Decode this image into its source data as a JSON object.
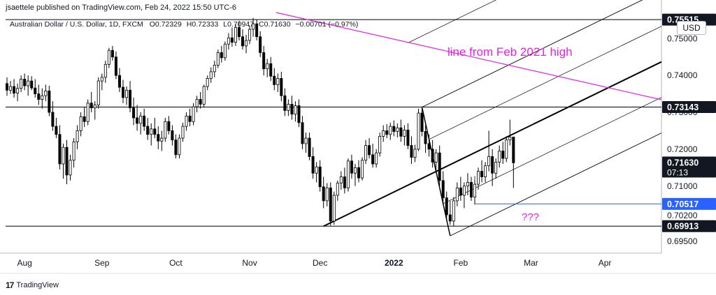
{
  "header": {
    "published": "jsaettele published on TradingView.com, Feb 24, 2022 15:50 UTC-6"
  },
  "symbol": {
    "name": "Australian Dollar / U.S. Dollar, 1D, FXCM",
    "open_label": "O",
    "open": "0.72329",
    "high_label": "H",
    "high": "0.72333",
    "low_label": "L",
    "low": "0.70947",
    "close_label": "C",
    "close": "0.71630",
    "change": "−0.00701 (−0.97%)"
  },
  "currency": "USD",
  "footer": {
    "brand": "TradingView",
    "logo": "17"
  },
  "colors": {
    "up": "#ffffff",
    "down": "#000000",
    "wick": "#000000",
    "magenta": "#e91ee9",
    "blue": "#2962ff",
    "fork": "#000000"
  },
  "chart_data": {
    "type": "candlestick",
    "title": "",
    "xlabel": "",
    "ylabel": "",
    "ylim": [
      0.6918,
      0.7563
    ],
    "x_ticks": [
      "Aug",
      "Sep",
      "Oct",
      "Nov",
      "Dec",
      "2022",
      "Feb",
      "Mar",
      "Apr"
    ],
    "y_ticks": [
      "0.75000",
      "0.74000",
      "0.73000",
      "0.72000",
      "0.71000",
      "0.70200",
      "0.69500"
    ],
    "y_tick_values": [
      0.75,
      0.74,
      0.73,
      0.72,
      0.71,
      0.702,
      0.695
    ],
    "price_labels": [
      {
        "text": "0.75515",
        "value": 0.75515,
        "style": "dark"
      },
      {
        "text": "0.73143",
        "value": 0.73143,
        "style": "dark"
      },
      {
        "text": "0.71630",
        "value": 0.7163,
        "style": "dark",
        "sub": "07:13"
      },
      {
        "text": "0.70517",
        "value": 0.70517,
        "style": "blue"
      },
      {
        "text": "0.69913",
        "value": 0.69913,
        "style": "dark"
      }
    ],
    "annotations": [
      {
        "text": "line from Feb 2021 high",
        "color": "magenta"
      },
      {
        "text": "???",
        "color": "magenta"
      }
    ],
    "horizontal_lines": [
      0.75515,
      0.73143,
      0.69913
    ],
    "candles_ohlc": [
      [
        0.7378,
        0.7395,
        0.7345,
        0.736
      ],
      [
        0.736,
        0.7385,
        0.735,
        0.737
      ],
      [
        0.737,
        0.739,
        0.734,
        0.7352
      ],
      [
        0.7352,
        0.7378,
        0.733,
        0.7365
      ],
      [
        0.7365,
        0.74,
        0.7355,
        0.739
      ],
      [
        0.739,
        0.7405,
        0.736,
        0.7372
      ],
      [
        0.7372,
        0.74,
        0.7345,
        0.7385
      ],
      [
        0.7385,
        0.7398,
        0.736,
        0.7366
      ],
      [
        0.7366,
        0.739,
        0.734,
        0.735
      ],
      [
        0.735,
        0.7375,
        0.732,
        0.7335
      ],
      [
        0.7335,
        0.7365,
        0.731,
        0.7345
      ],
      [
        0.7345,
        0.7375,
        0.733,
        0.7358
      ],
      [
        0.7358,
        0.7372,
        0.729,
        0.73
      ],
      [
        0.73,
        0.733,
        0.725,
        0.7262
      ],
      [
        0.7262,
        0.7285,
        0.723,
        0.724
      ],
      [
        0.724,
        0.7265,
        0.7145,
        0.716
      ],
      [
        0.716,
        0.7215,
        0.712,
        0.7205
      ],
      [
        0.7205,
        0.7225,
        0.7105,
        0.713
      ],
      [
        0.713,
        0.7185,
        0.7115,
        0.717
      ],
      [
        0.717,
        0.723,
        0.715,
        0.722
      ],
      [
        0.722,
        0.7265,
        0.72,
        0.725
      ],
      [
        0.725,
        0.73,
        0.7235,
        0.7288
      ],
      [
        0.7288,
        0.7315,
        0.726,
        0.7275
      ],
      [
        0.7275,
        0.7335,
        0.7265,
        0.7325
      ],
      [
        0.7325,
        0.7355,
        0.73,
        0.7312
      ],
      [
        0.7312,
        0.733,
        0.728,
        0.732
      ],
      [
        0.732,
        0.7395,
        0.731,
        0.7385
      ],
      [
        0.7385,
        0.7405,
        0.736,
        0.7395
      ],
      [
        0.7395,
        0.744,
        0.738,
        0.743
      ],
      [
        0.743,
        0.7475,
        0.742,
        0.7468
      ],
      [
        0.7468,
        0.748,
        0.744,
        0.745
      ],
      [
        0.745,
        0.7465,
        0.739,
        0.74
      ],
      [
        0.74,
        0.742,
        0.7355,
        0.7368
      ],
      [
        0.7368,
        0.7388,
        0.7325,
        0.734
      ],
      [
        0.734,
        0.737,
        0.732,
        0.736
      ],
      [
        0.736,
        0.7385,
        0.73,
        0.7312
      ],
      [
        0.7312,
        0.734,
        0.7265,
        0.7285
      ],
      [
        0.7285,
        0.732,
        0.725,
        0.727
      ],
      [
        0.727,
        0.73,
        0.724,
        0.729
      ],
      [
        0.729,
        0.731,
        0.725,
        0.7262
      ],
      [
        0.7262,
        0.7285,
        0.7225,
        0.724
      ],
      [
        0.724,
        0.727,
        0.721,
        0.7255
      ],
      [
        0.7255,
        0.7285,
        0.723,
        0.724
      ],
      [
        0.724,
        0.7262,
        0.72,
        0.7222
      ],
      [
        0.7222,
        0.725,
        0.7195,
        0.723
      ],
      [
        0.723,
        0.7285,
        0.722,
        0.7275
      ],
      [
        0.7275,
        0.729,
        0.724,
        0.725
      ],
      [
        0.725,
        0.7265,
        0.721,
        0.7225
      ],
      [
        0.7225,
        0.724,
        0.7175,
        0.7185
      ],
      [
        0.7185,
        0.724,
        0.7175,
        0.723
      ],
      [
        0.723,
        0.7272,
        0.722,
        0.7262
      ],
      [
        0.7262,
        0.73,
        0.725,
        0.729
      ],
      [
        0.729,
        0.731,
        0.7262,
        0.7275
      ],
      [
        0.7275,
        0.7325,
        0.7265,
        0.7315
      ],
      [
        0.7315,
        0.7345,
        0.73,
        0.7335
      ],
      [
        0.7335,
        0.7355,
        0.731,
        0.7322
      ],
      [
        0.7322,
        0.7375,
        0.7315,
        0.737
      ],
      [
        0.737,
        0.74,
        0.736,
        0.7392
      ],
      [
        0.7392,
        0.7422,
        0.738,
        0.741
      ],
      [
        0.741,
        0.744,
        0.7395,
        0.7428
      ],
      [
        0.7428,
        0.747,
        0.742,
        0.7462
      ],
      [
        0.7462,
        0.748,
        0.7435,
        0.7448
      ],
      [
        0.7448,
        0.7492,
        0.744,
        0.7485
      ],
      [
        0.7485,
        0.7515,
        0.747,
        0.7502
      ],
      [
        0.7502,
        0.753,
        0.7478,
        0.749
      ],
      [
        0.749,
        0.754,
        0.748,
        0.753
      ],
      [
        0.753,
        0.7548,
        0.7495,
        0.7505
      ],
      [
        0.7505,
        0.7525,
        0.747,
        0.748
      ],
      [
        0.748,
        0.751,
        0.746,
        0.7495
      ],
      [
        0.7495,
        0.7535,
        0.7485,
        0.7525
      ],
      [
        0.7525,
        0.7556,
        0.7505,
        0.754
      ],
      [
        0.754,
        0.7552,
        0.7495,
        0.7505
      ],
      [
        0.7505,
        0.752,
        0.745,
        0.7462
      ],
      [
        0.7462,
        0.748,
        0.74,
        0.7418
      ],
      [
        0.7418,
        0.7445,
        0.7395,
        0.7432
      ],
      [
        0.7432,
        0.745,
        0.7385,
        0.7398
      ],
      [
        0.7398,
        0.742,
        0.736,
        0.7375
      ],
      [
        0.7375,
        0.7405,
        0.7355,
        0.7392
      ],
      [
        0.7392,
        0.741,
        0.733,
        0.7345
      ],
      [
        0.7345,
        0.7365,
        0.729,
        0.7305
      ],
      [
        0.7305,
        0.7335,
        0.729,
        0.7322
      ],
      [
        0.7322,
        0.7345,
        0.728,
        0.7295
      ],
      [
        0.7295,
        0.733,
        0.7275,
        0.7318
      ],
      [
        0.7318,
        0.7335,
        0.726,
        0.7272
      ],
      [
        0.7272,
        0.729,
        0.72,
        0.7215
      ],
      [
        0.7215,
        0.7245,
        0.719,
        0.723
      ],
      [
        0.723,
        0.7245,
        0.717,
        0.718
      ],
      [
        0.718,
        0.7205,
        0.712,
        0.7135
      ],
      [
        0.7135,
        0.7165,
        0.711,
        0.7152
      ],
      [
        0.7152,
        0.717,
        0.7085,
        0.7098
      ],
      [
        0.7098,
        0.7125,
        0.704,
        0.706
      ],
      [
        0.706,
        0.7108,
        0.7045,
        0.7095
      ],
      [
        0.7095,
        0.711,
        0.6993,
        0.7005
      ],
      [
        0.7005,
        0.7085,
        0.6995,
        0.7075
      ],
      [
        0.7075,
        0.7115,
        0.706,
        0.7108
      ],
      [
        0.7108,
        0.714,
        0.709,
        0.7125
      ],
      [
        0.7125,
        0.715,
        0.708,
        0.7095
      ],
      [
        0.7095,
        0.7175,
        0.7085,
        0.7168
      ],
      [
        0.7168,
        0.7185,
        0.712,
        0.7135
      ],
      [
        0.7135,
        0.716,
        0.71,
        0.715
      ],
      [
        0.715,
        0.717,
        0.711,
        0.7122
      ],
      [
        0.7122,
        0.7178,
        0.7115,
        0.717
      ],
      [
        0.717,
        0.7225,
        0.716,
        0.721
      ],
      [
        0.721,
        0.723,
        0.7175,
        0.7185
      ],
      [
        0.7185,
        0.7215,
        0.715,
        0.716
      ],
      [
        0.716,
        0.72,
        0.715,
        0.719
      ],
      [
        0.719,
        0.7245,
        0.718,
        0.7235
      ],
      [
        0.7235,
        0.7265,
        0.722,
        0.725
      ],
      [
        0.725,
        0.7268,
        0.723,
        0.724
      ],
      [
        0.724,
        0.7272,
        0.7225,
        0.7262
      ],
      [
        0.7262,
        0.7278,
        0.7235,
        0.7248
      ],
      [
        0.7248,
        0.727,
        0.7232,
        0.7258
      ],
      [
        0.7258,
        0.728,
        0.722,
        0.7235
      ],
      [
        0.7235,
        0.7265,
        0.721,
        0.7252
      ],
      [
        0.7252,
        0.727,
        0.72,
        0.721
      ],
      [
        0.721,
        0.7235,
        0.716,
        0.7178
      ],
      [
        0.7178,
        0.7212,
        0.7165,
        0.72
      ],
      [
        0.72,
        0.731,
        0.7195,
        0.7298
      ],
      [
        0.7298,
        0.7314,
        0.7235,
        0.7248
      ],
      [
        0.7248,
        0.7265,
        0.719,
        0.7215
      ],
      [
        0.7215,
        0.724,
        0.718,
        0.72
      ],
      [
        0.72,
        0.7225,
        0.715,
        0.7165
      ],
      [
        0.7165,
        0.72,
        0.714,
        0.719
      ],
      [
        0.719,
        0.721,
        0.71,
        0.7115
      ],
      [
        0.7115,
        0.714,
        0.705,
        0.7068
      ],
      [
        0.7068,
        0.7085,
        0.7005,
        0.7022
      ],
      [
        0.7022,
        0.706,
        0.6995,
        0.7005
      ],
      [
        0.7005,
        0.707,
        0.6991,
        0.706
      ],
      [
        0.706,
        0.711,
        0.7045,
        0.7095
      ],
      [
        0.7095,
        0.7125,
        0.706,
        0.7075
      ],
      [
        0.7075,
        0.711,
        0.704,
        0.71
      ],
      [
        0.71,
        0.7135,
        0.7075,
        0.711
      ],
      [
        0.711,
        0.7125,
        0.706,
        0.707
      ],
      [
        0.707,
        0.7115,
        0.705,
        0.7105
      ],
      [
        0.7105,
        0.715,
        0.709,
        0.714
      ],
      [
        0.714,
        0.717,
        0.711,
        0.7125
      ],
      [
        0.7125,
        0.7165,
        0.711,
        0.7155
      ],
      [
        0.7155,
        0.725,
        0.714,
        0.718
      ],
      [
        0.718,
        0.72,
        0.71,
        0.7135
      ],
      [
        0.7135,
        0.7175,
        0.712,
        0.7165
      ],
      [
        0.7165,
        0.721,
        0.715,
        0.7195
      ],
      [
        0.7195,
        0.722,
        0.716,
        0.7175
      ],
      [
        0.7175,
        0.7235,
        0.7165,
        0.7225
      ],
      [
        0.7225,
        0.728,
        0.721,
        0.7233
      ],
      [
        0.7233,
        0.7233,
        0.7095,
        0.7163
      ]
    ]
  }
}
